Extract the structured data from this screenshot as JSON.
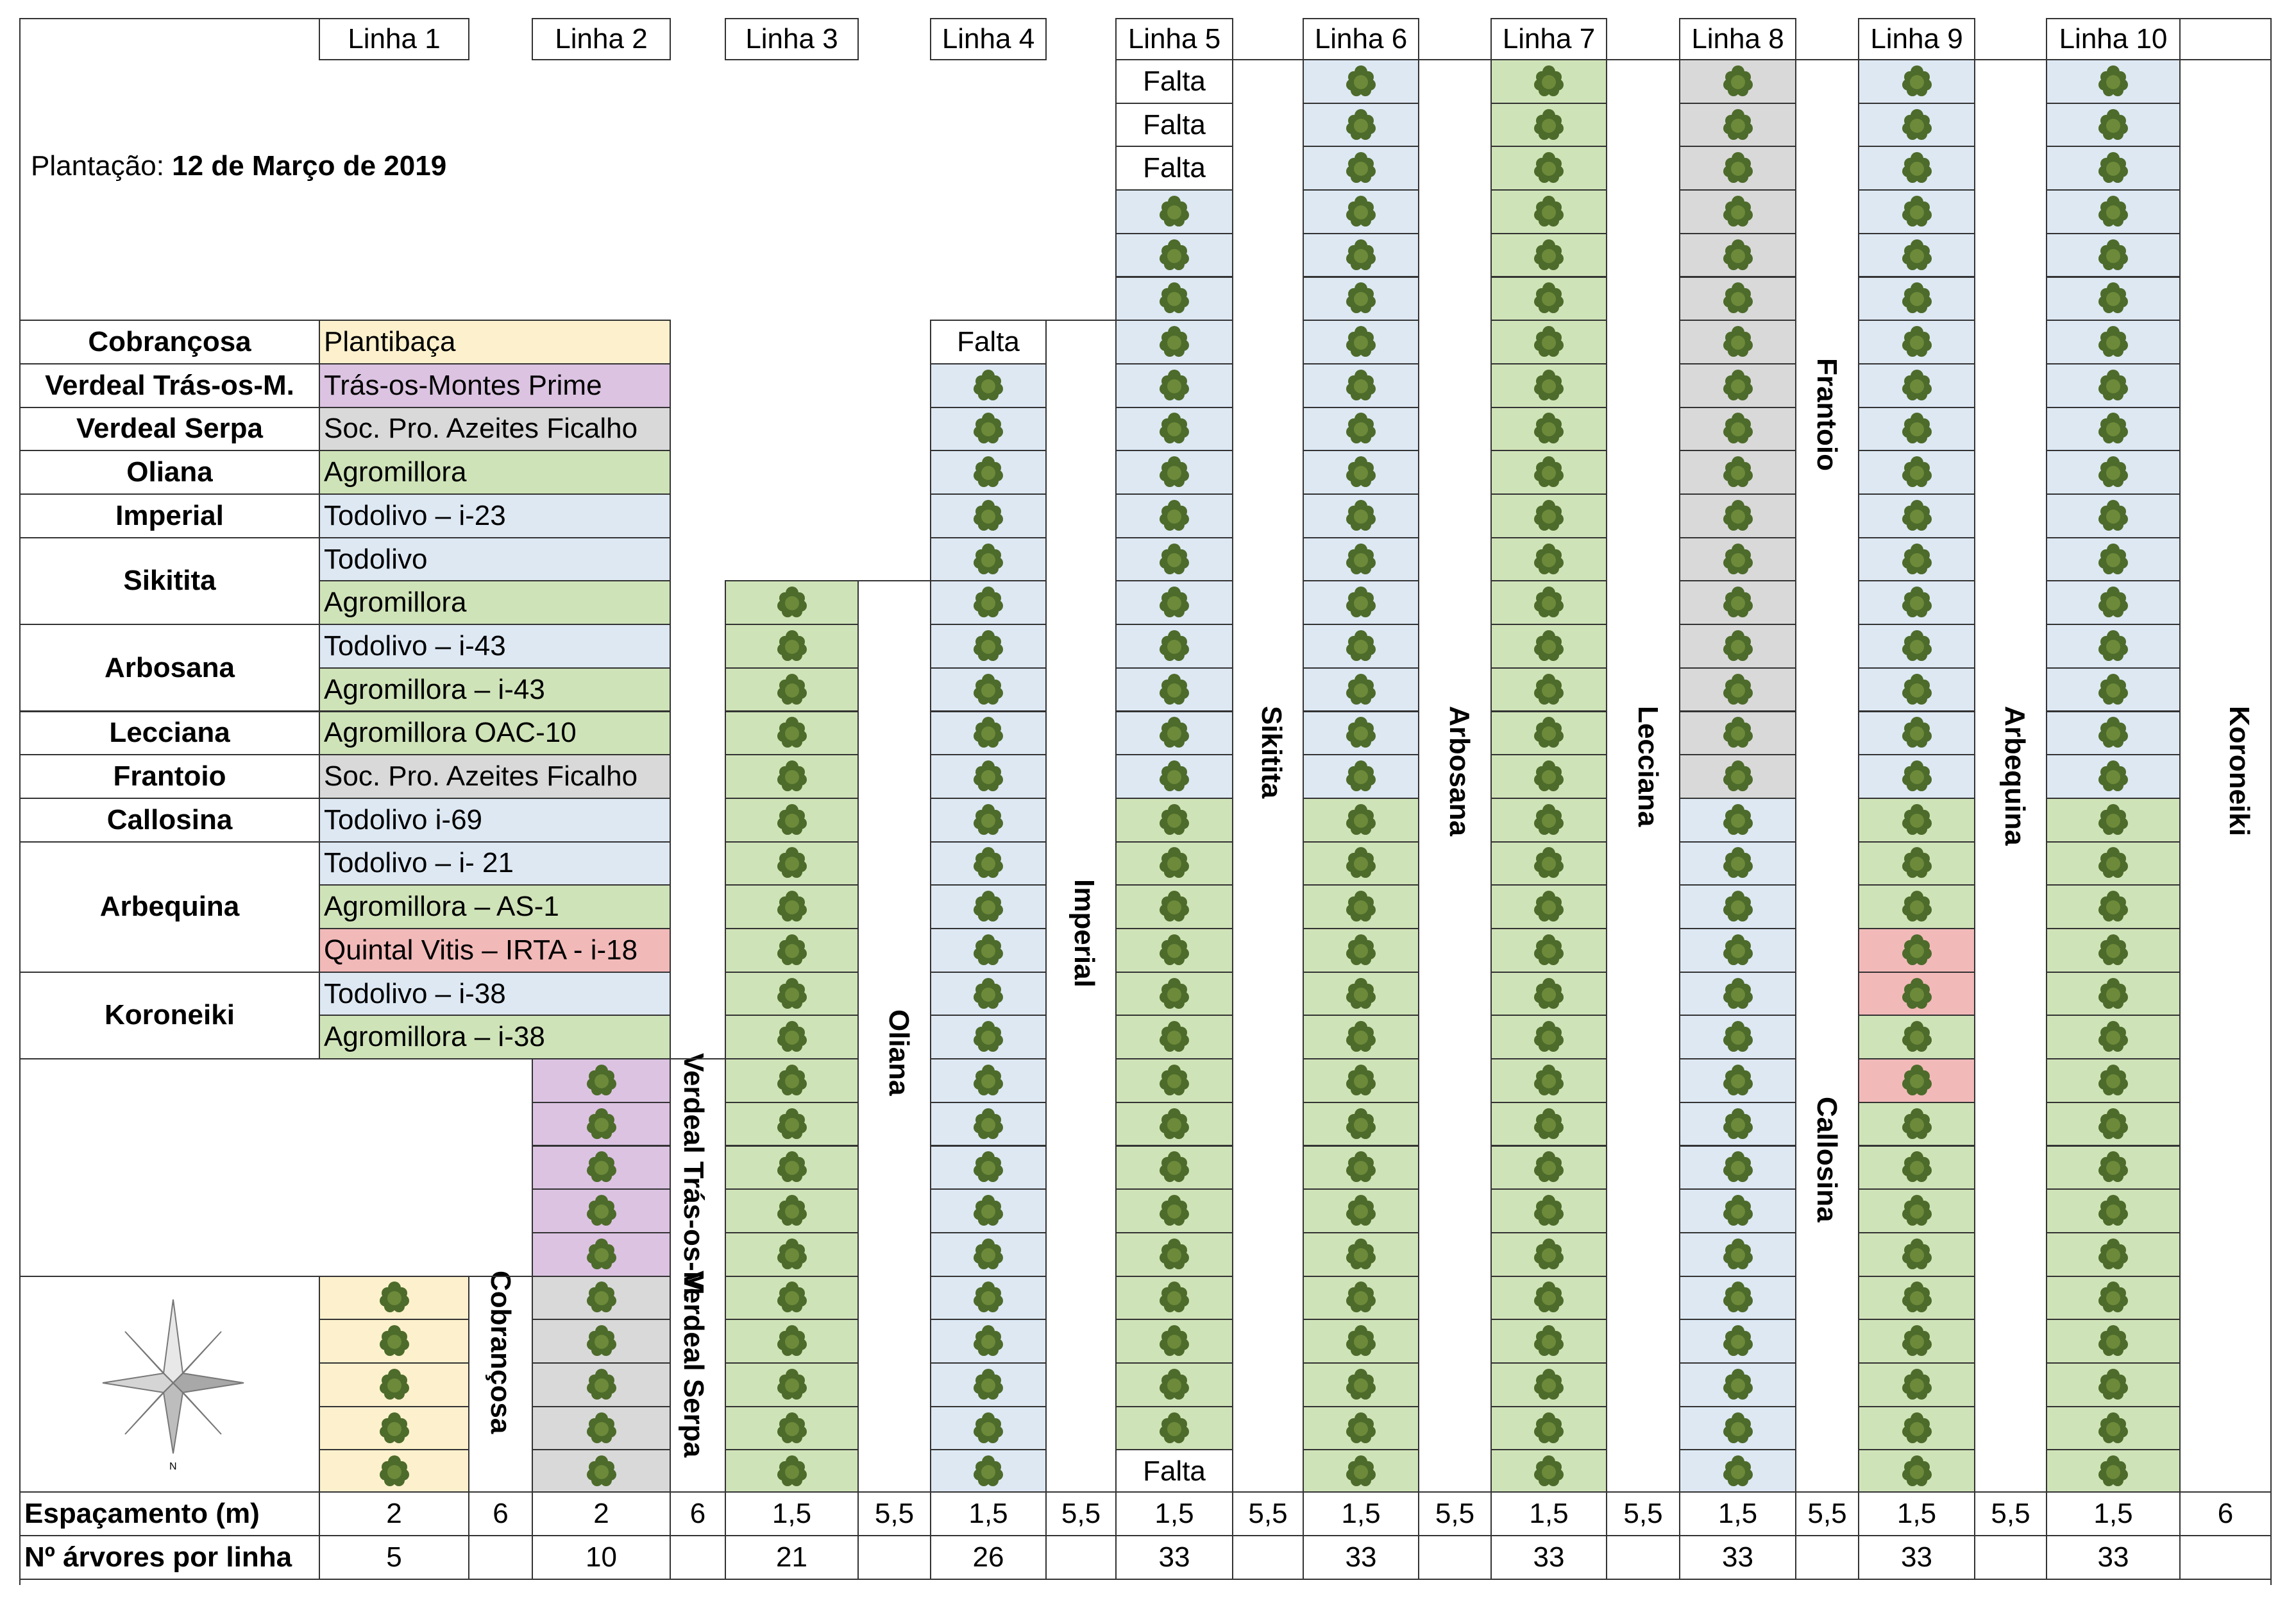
{
  "planting": {
    "label": "Plantação: ",
    "date": "12 de Março de 2019"
  },
  "colors": {
    "yellow": "#fdf1cd",
    "purple": "#dcc3e2",
    "gray": "#d9d9d9",
    "green": "#cfe3b8",
    "blue": "#dde8f3",
    "red": "#f2b9b9",
    "tree": "#4d6b2a"
  },
  "varieties": [
    {
      "name": "Cobrançosa",
      "suppliers": [
        {
          "text": "Plantibaça",
          "color": "yellow"
        }
      ]
    },
    {
      "name": "Verdeal Trás-os-M.",
      "suppliers": [
        {
          "text": "Trás-os-Montes Prime",
          "color": "purple"
        }
      ]
    },
    {
      "name": "Verdeal Serpa",
      "suppliers": [
        {
          "text": "Soc. Pro. Azeites Ficalho",
          "color": "gray"
        }
      ]
    },
    {
      "name": "Oliana",
      "suppliers": [
        {
          "text": "Agromillora",
          "color": "green"
        }
      ]
    },
    {
      "name": "Imperial",
      "suppliers": [
        {
          "text": "Todolivo – i-23",
          "color": "blue"
        }
      ]
    },
    {
      "name": "Sikitita",
      "suppliers": [
        {
          "text": "Todolivo",
          "color": "blue"
        },
        {
          "text": "Agromillora",
          "color": "green"
        }
      ]
    },
    {
      "name": "Arbosana",
      "suppliers": [
        {
          "text": "Todolivo – i-43",
          "color": "blue"
        },
        {
          "text": "Agromillora – i-43",
          "color": "green"
        }
      ]
    },
    {
      "name": "Lecciana",
      "suppliers": [
        {
          "text": "Agromillora OAC-10",
          "color": "green"
        }
      ]
    },
    {
      "name": "Frantoio",
      "suppliers": [
        {
          "text": "Soc. Pro. Azeites Ficalho",
          "color": "gray"
        }
      ]
    },
    {
      "name": "Callosina",
      "suppliers": [
        {
          "text": "Todolivo i-69",
          "color": "blue"
        }
      ]
    },
    {
      "name": "Arbequina",
      "suppliers": [
        {
          "text": "Todolivo – i- 21",
          "color": "blue"
        },
        {
          "text": "Agromillora – AS-1",
          "color": "green"
        },
        {
          "text": "Quintal Vitis – IRTA - i-18",
          "color": "red"
        }
      ]
    },
    {
      "name": "Koroneiki",
      "suppliers": [
        {
          "text": "Todolivo – i-38",
          "color": "blue"
        },
        {
          "text": "Agromillora – i-38",
          "color": "green"
        }
      ]
    }
  ],
  "falta_label": "Falta",
  "lines": [
    {
      "header": "Linha 1",
      "spacing": "2",
      "gap": "6",
      "trees": "5",
      "segments": [
        {
          "count": 5,
          "color": "yellow"
        }
      ],
      "labels": [
        {
          "text": "Cobrançosa",
          "row": 28
        }
      ]
    },
    {
      "header": "Linha 2",
      "spacing": "2",
      "gap": "6",
      "trees": "10",
      "segments": [
        {
          "count": 5,
          "color": "purple"
        },
        {
          "count": 5,
          "color": "gray"
        }
      ],
      "labels": [
        {
          "text": "Verdeal Trás-os-M.",
          "row": 23
        },
        {
          "text": "Verdeal Serpa",
          "row": 28
        }
      ]
    },
    {
      "header": "Linha 3",
      "spacing": "1,5",
      "gap": "5,5",
      "trees": "21",
      "segments": [
        {
          "count": 21,
          "color": "green"
        }
      ],
      "labels": [
        {
          "text": "Oliana",
          "row": 22
        }
      ]
    },
    {
      "header": "Linha 4",
      "spacing": "1,5",
      "gap": "5,5",
      "trees": "26",
      "top_falta": 1,
      "segments": [
        {
          "count": 26,
          "color": "blue"
        }
      ],
      "labels": [
        {
          "text": "Imperial",
          "row": 19
        }
      ]
    },
    {
      "header": "Linha 5",
      "spacing": "1,5",
      "gap": "5,5",
      "trees": "33",
      "top_falta": 3,
      "bottom_falta": 1,
      "segments": [
        {
          "count": 14,
          "color": "blue"
        },
        {
          "count": 15,
          "color": "green"
        }
      ],
      "labels": [
        {
          "text": "Sikitita",
          "row": 15
        }
      ]
    },
    {
      "header": "Linha 6",
      "spacing": "1,5",
      "gap": "5,5",
      "trees": "33",
      "segments": [
        {
          "count": 17,
          "color": "blue"
        },
        {
          "count": 16,
          "color": "green"
        }
      ],
      "labels": [
        {
          "text": "Arbosana",
          "row": 15
        }
      ]
    },
    {
      "header": "Linha 7",
      "spacing": "1,5",
      "gap": "5,5",
      "trees": "33",
      "segments": [
        {
          "count": 33,
          "color": "green"
        }
      ],
      "labels": [
        {
          "text": "Lecciana",
          "row": 15
        }
      ]
    },
    {
      "header": "Linha 8",
      "spacing": "1,5",
      "gap": "5,5",
      "trees": "33",
      "segments": [
        {
          "count": 17,
          "color": "gray"
        },
        {
          "count": 16,
          "color": "blue"
        }
      ],
      "labels": [
        {
          "text": "Frantoio",
          "row": 7
        },
        {
          "text": "Callosina",
          "row": 24
        }
      ]
    },
    {
      "header": "Linha 9",
      "spacing": "1,5",
      "gap": "5,5",
      "trees": "33",
      "segments": [
        {
          "count": 17,
          "color": "blue"
        },
        {
          "count": 3,
          "color": "green"
        },
        {
          "count": 2,
          "color": "red"
        },
        {
          "count": 1,
          "color": "green"
        },
        {
          "count": 1,
          "color": "red"
        },
        {
          "count": 9,
          "color": "green"
        }
      ],
      "labels": [
        {
          "text": "Arbequina",
          "row": 15
        }
      ]
    },
    {
      "header": "Linha 10",
      "spacing": "1,5",
      "gap": "6",
      "trees": "33",
      "segments": [
        {
          "count": 17,
          "color": "blue"
        },
        {
          "count": 16,
          "color": "green"
        }
      ],
      "labels": [
        {
          "text": "Koroneiki",
          "row": 15
        }
      ]
    }
  ],
  "gaps_extra": [
    "5,5",
    "6"
  ],
  "footer": {
    "spacing_label": "Espaçamento (m)",
    "count_label": "Nº árvores por linha"
  },
  "compass": {
    "icon": "compass-rose-icon",
    "north": "N"
  }
}
